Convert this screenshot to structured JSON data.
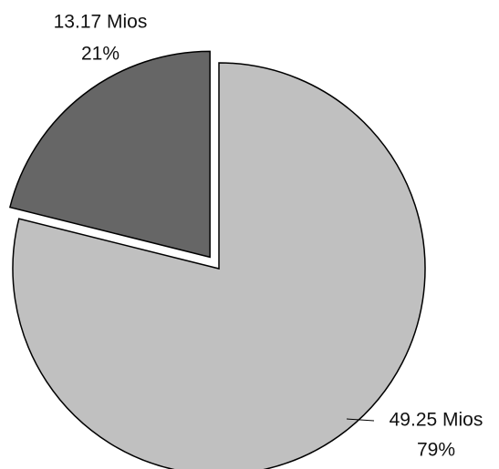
{
  "chart_data": {
    "type": "pie",
    "categories": [
      null,
      null
    ],
    "values": [
      49.25,
      13.17
    ],
    "value_labels": [
      "49.25 Mios",
      "13.17 Mios"
    ],
    "percent_values": [
      79,
      21
    ],
    "percent_labels": [
      "79%",
      "21%"
    ],
    "colors": [
      "#c0c0c0",
      "#666666"
    ],
    "exploded": [
      false,
      true
    ]
  }
}
